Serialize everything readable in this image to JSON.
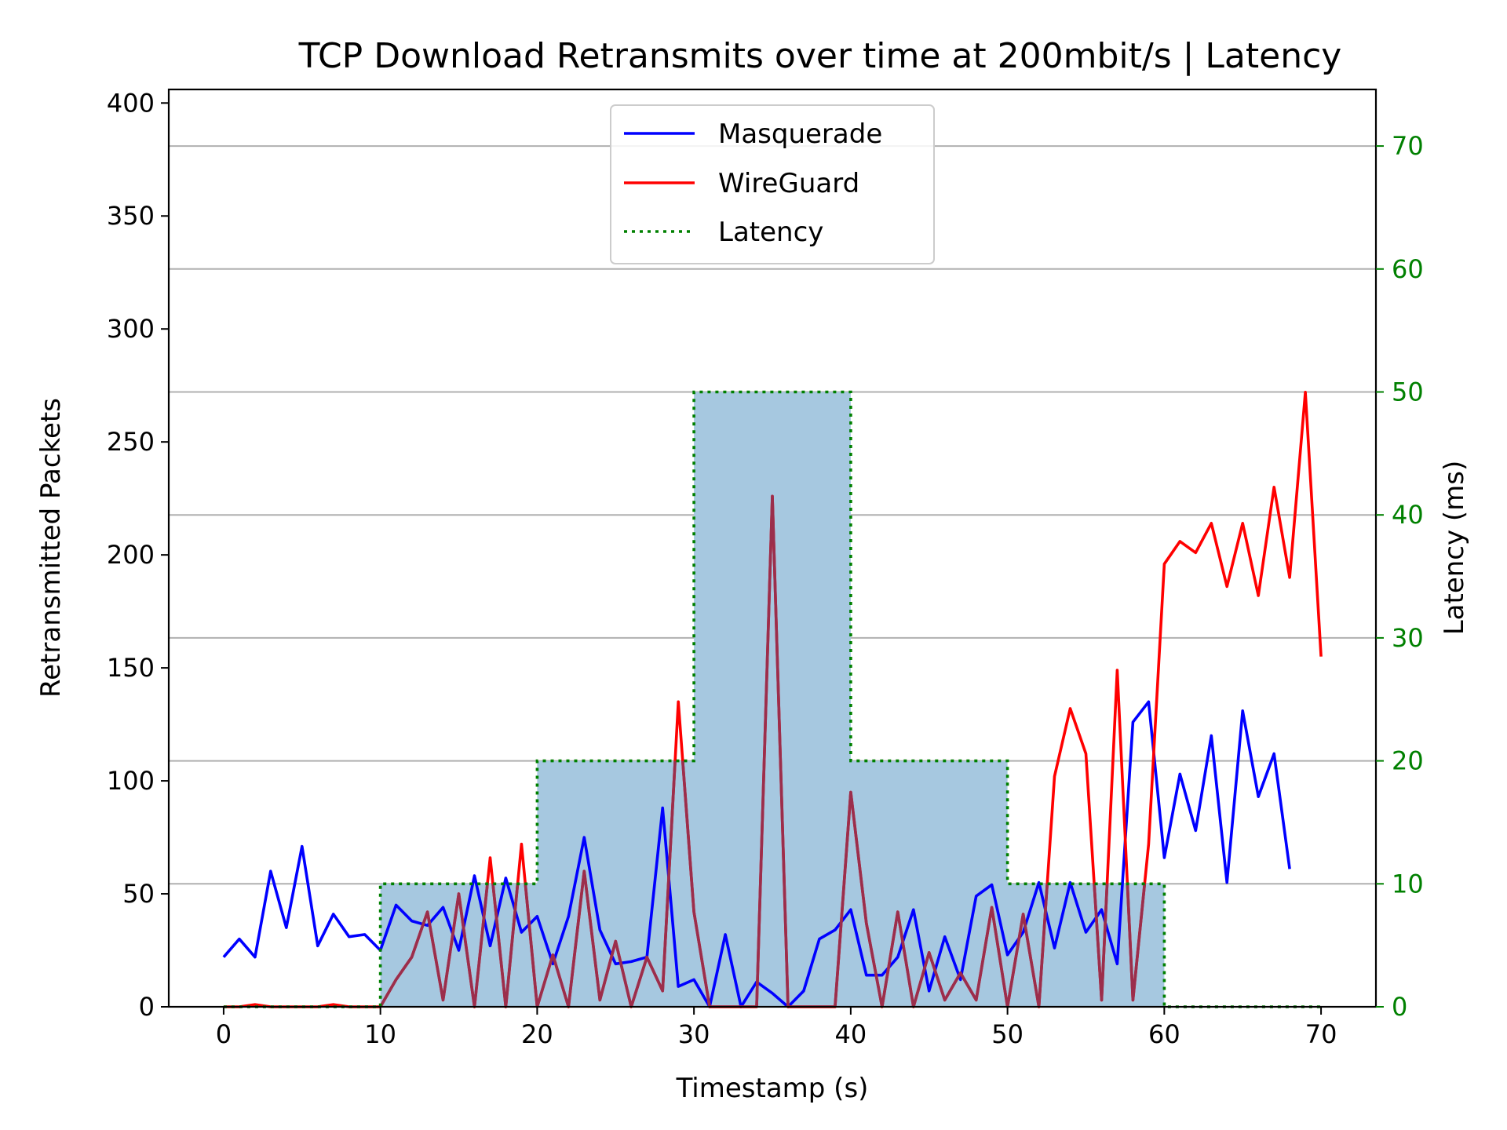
{
  "chart_data": {
    "type": "line",
    "title": "TCP Download Retransmits over time at 200mbit/s | Latency",
    "xlabel": "Timestamp (s)",
    "ylabel": "Retransmitted Packets",
    "y2label": "Latency (ms)",
    "xlim": [
      -3.5,
      73.5
    ],
    "ylim": [
      0,
      406
    ],
    "y2lim": [
      0,
      74.6
    ],
    "xticks": [
      "0",
      "10",
      "20",
      "30",
      "40",
      "50",
      "60",
      "70"
    ],
    "yticks": [
      "0",
      "50",
      "100",
      "150",
      "200",
      "250",
      "300",
      "350",
      "400"
    ],
    "y2ticks": [
      "0",
      "10",
      "20",
      "30",
      "40",
      "50",
      "60",
      "70"
    ],
    "grid": "horizontal at right-axis ticks",
    "legend_position": "top-center",
    "colors": {
      "masquerade": "#0000ff",
      "wireguard": "#ff0000",
      "overlap": "#9b2e4c",
      "latency": "#008000",
      "latency_fill": "#a6c8e0",
      "grid": "#b0b0b0",
      "right_axis": "#008000"
    },
    "series": [
      {
        "name": "Masquerade",
        "axis": "left",
        "x": [
          0,
          1,
          2,
          3,
          4,
          5,
          6,
          7,
          8,
          9,
          10,
          11,
          12,
          13,
          14,
          15,
          16,
          17,
          18,
          19,
          20,
          21,
          22,
          23,
          24,
          25,
          26,
          27,
          28,
          29,
          30,
          31,
          32,
          33,
          34,
          35,
          36,
          37,
          38,
          39,
          40,
          41,
          42,
          43,
          44,
          45,
          46,
          47,
          48,
          49,
          50,
          51,
          52,
          53,
          54,
          55,
          56,
          57,
          58,
          59,
          60,
          61,
          62,
          63,
          64,
          65,
          66,
          67,
          68
        ],
        "values": [
          22,
          30,
          22,
          60,
          35,
          71,
          27,
          41,
          31,
          32,
          25,
          45,
          38,
          36,
          44,
          25,
          58,
          27,
          57,
          33,
          40,
          19,
          40,
          75,
          34,
          19,
          20,
          22,
          88,
          9,
          12,
          0,
          32,
          0,
          11,
          6,
          0,
          7,
          30,
          34,
          43,
          14,
          14,
          22,
          43,
          7,
          31,
          12,
          49,
          54,
          23,
          33,
          55,
          26,
          55,
          33,
          43,
          19,
          126,
          135,
          66,
          103,
          78,
          120,
          55,
          131,
          93,
          112,
          61
        ]
      },
      {
        "name": "WireGuard",
        "axis": "left",
        "x": [
          0,
          1,
          2,
          3,
          4,
          5,
          6,
          7,
          8,
          9,
          10,
          11,
          12,
          13,
          14,
          15,
          16,
          17,
          18,
          19,
          20,
          21,
          22,
          23,
          24,
          25,
          26,
          27,
          28,
          29,
          30,
          31,
          32,
          33,
          34,
          35,
          36,
          37,
          38,
          39,
          40,
          41,
          42,
          43,
          44,
          45,
          46,
          47,
          48,
          49,
          50,
          51,
          52,
          53,
          54,
          55,
          56,
          57,
          58,
          59,
          60,
          61,
          62,
          63,
          64,
          65,
          66,
          67,
          68,
          69,
          70
        ],
        "values": [
          0,
          0,
          1,
          0,
          0,
          0,
          0,
          1,
          0,
          0,
          0,
          12,
          22,
          42,
          3,
          50,
          0,
          66,
          0,
          72,
          0,
          23,
          0,
          60,
          3,
          29,
          0,
          22,
          7,
          135,
          42,
          0,
          0,
          0,
          0,
          226,
          0,
          0,
          0,
          0,
          95,
          37,
          0,
          42,
          0,
          24,
          3,
          15,
          3,
          44,
          0,
          41,
          0,
          102,
          132,
          112,
          3,
          149,
          3,
          72,
          196,
          206,
          201,
          214,
          186,
          214,
          182,
          230,
          190,
          272,
          155
        ]
      },
      {
        "name": "Latency",
        "axis": "right",
        "style": "step-dotted-filled",
        "x": [
          0,
          10,
          20,
          30,
          40,
          50,
          60,
          70
        ],
        "values": [
          0,
          10,
          20,
          50,
          20,
          10,
          0,
          0
        ]
      }
    ]
  }
}
